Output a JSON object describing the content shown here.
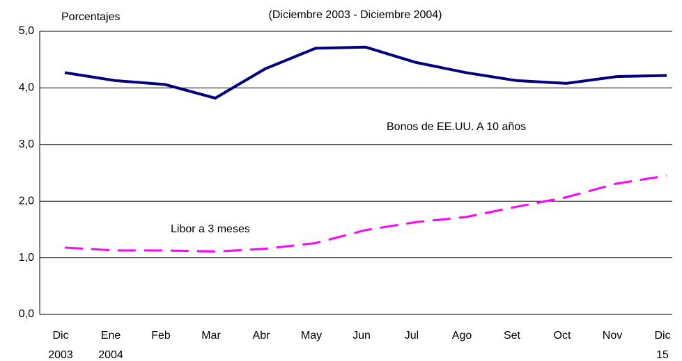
{
  "chart_data": {
    "type": "line",
    "ylabel": "Porcentajes",
    "subtitle": "(Diciembre 2003 - Diciembre 2004)",
    "categories": [
      [
        "Dic",
        "2003"
      ],
      [
        "Ene",
        "2004"
      ],
      [
        "Feb"
      ],
      [
        "Mar"
      ],
      [
        "Abr"
      ],
      [
        "May"
      ],
      [
        "Jun"
      ],
      [
        "Jul"
      ],
      [
        "Ago"
      ],
      [
        "Set"
      ],
      [
        "Oct"
      ],
      [
        "Nov"
      ],
      [
        "Dic",
        "15"
      ]
    ],
    "series": [
      {
        "name": "Bonos de EE.UU. A 10 años",
        "color": "#000080",
        "dashed": false,
        "values": [
          4.27,
          4.13,
          4.06,
          3.82,
          4.34,
          4.7,
          4.72,
          4.45,
          4.27,
          4.13,
          4.08,
          4.2,
          4.22
        ]
      },
      {
        "name": "Libor a 3 meses",
        "color": "#ff00ff",
        "dashed": true,
        "values": [
          1.18,
          1.13,
          1.13,
          1.11,
          1.16,
          1.26,
          1.49,
          1.63,
          1.72,
          1.9,
          2.07,
          2.31,
          2.45
        ]
      }
    ],
    "ylim": [
      0,
      5
    ],
    "yticks": [
      {
        "value": 0,
        "label": "0,0"
      },
      {
        "value": 1,
        "label": "1,0"
      },
      {
        "value": 2,
        "label": "2,0"
      },
      {
        "value": 3,
        "label": "3,0"
      },
      {
        "value": 4,
        "label": "4,0"
      },
      {
        "value": 5,
        "label": "5,0"
      }
    ],
    "grid": true
  }
}
